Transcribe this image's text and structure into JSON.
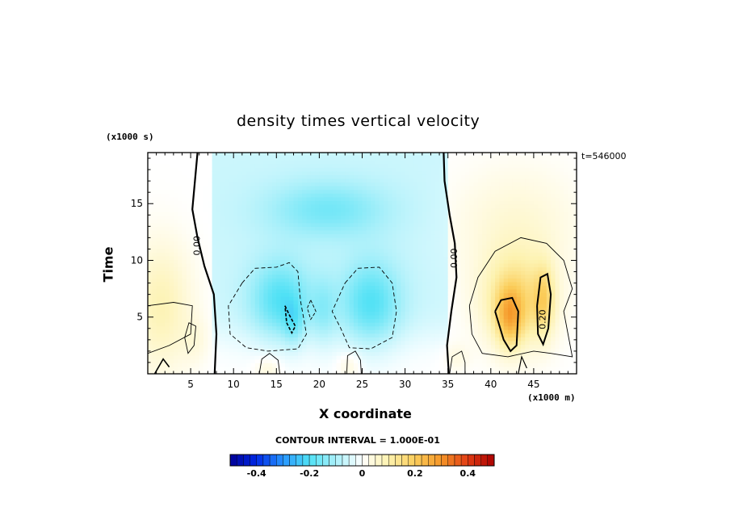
{
  "chart_data": {
    "type": "heatmap",
    "title": "density times vertical velocity",
    "xlabel": "X coordinate",
    "ylabel": "Time",
    "x_units": "(x1000 m)",
    "y_units": "(x1000 s)",
    "timestamp": "t=546000",
    "contour_interval_label": "CONTOUR INTERVAL = 1.000E-01",
    "xlim": [
      0,
      50
    ],
    "ylim": [
      0,
      19.5
    ],
    "x_ticks": [
      5,
      10,
      15,
      20,
      25,
      30,
      35,
      40,
      45
    ],
    "y_ticks": [
      5,
      10,
      15
    ],
    "contour_labels": [
      {
        "text": "0.00",
        "x": 5.8,
        "y": 11.3
      },
      {
        "text": "0.00",
        "x": 35.8,
        "y": 10.2
      },
      {
        "text": "0.20",
        "x": 46.1,
        "y": 4.8
      }
    ],
    "colorbar": {
      "range": [
        -0.5,
        0.5
      ],
      "ticks": [
        "-0.4",
        "-0.2",
        "0",
        "0.2",
        "0.4"
      ],
      "tick_values": [
        -0.4,
        -0.2,
        0,
        0.2,
        0.4
      ]
    },
    "features": [
      {
        "name": "upper-mid-light-blue",
        "x": 21,
        "y": 14.5,
        "value": -0.07
      },
      {
        "name": "left-blue-lobe",
        "x": 15.5,
        "y": 6.5,
        "value": -0.18
      },
      {
        "name": "right-blue-lobe",
        "x": 26,
        "y": 6.2,
        "value": -0.16
      },
      {
        "name": "left-yellow-edge",
        "x": 1.5,
        "y": 6,
        "value": 0.09
      },
      {
        "name": "right-orange-max",
        "x": 42.2,
        "y": 5,
        "value": 0.3
      },
      {
        "name": "right-yellow-max",
        "x": 46.2,
        "y": 6.5,
        "value": 0.22
      }
    ],
    "grid": false
  },
  "colors": {
    "negative_strong": "#0000b4",
    "negative_light": "#62e8f2",
    "neutral": "#ffffff",
    "positive_light": "#fbeb8f",
    "positive_strong": "#b40000"
  }
}
